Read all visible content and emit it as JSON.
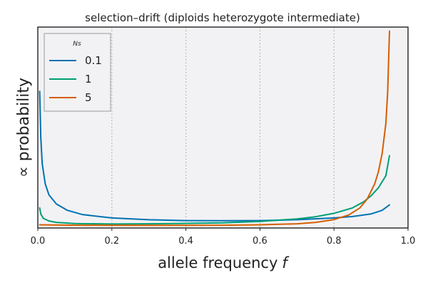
{
  "chart_data": {
    "type": "line",
    "title": "selection–drift (diploids heterozygote intermediate)",
    "xlabel": "allele frequency",
    "xlabel_symbol": "f",
    "ylabel": "∝ probability",
    "xlim": [
      0.0,
      1.0
    ],
    "ylim": [
      0.0,
      1.0
    ],
    "x_ticks": [
      "0.0",
      "0.2",
      "0.4",
      "0.6",
      "0.8",
      "1.0"
    ],
    "y_ticks": [],
    "grid": "vertical dotted lines at 0.2, 0.4, 0.6, 0.8",
    "legend_title": "Ns",
    "legend_position": "top-left",
    "series": [
      {
        "name": "0.1",
        "color": "#0072b2",
        "points": [
          [
            0.005,
            0.68
          ],
          [
            0.008,
            0.45
          ],
          [
            0.012,
            0.32
          ],
          [
            0.02,
            0.22
          ],
          [
            0.03,
            0.165
          ],
          [
            0.05,
            0.12
          ],
          [
            0.08,
            0.088
          ],
          [
            0.12,
            0.067
          ],
          [
            0.2,
            0.05
          ],
          [
            0.3,
            0.041
          ],
          [
            0.4,
            0.037
          ],
          [
            0.5,
            0.036
          ],
          [
            0.6,
            0.037
          ],
          [
            0.7,
            0.041
          ],
          [
            0.8,
            0.05
          ],
          [
            0.85,
            0.057
          ],
          [
            0.9,
            0.07
          ],
          [
            0.93,
            0.088
          ],
          [
            0.95,
            0.115
          ]
        ]
      },
      {
        "name": "1",
        "color": "#009e73",
        "points": [
          [
            0.005,
            0.1
          ],
          [
            0.008,
            0.07
          ],
          [
            0.015,
            0.048
          ],
          [
            0.03,
            0.035
          ],
          [
            0.05,
            0.028
          ],
          [
            0.1,
            0.022
          ],
          [
            0.2,
            0.02
          ],
          [
            0.3,
            0.021
          ],
          [
            0.4,
            0.023
          ],
          [
            0.5,
            0.026
          ],
          [
            0.6,
            0.033
          ],
          [
            0.7,
            0.045
          ],
          [
            0.75,
            0.056
          ],
          [
            0.8,
            0.073
          ],
          [
            0.85,
            0.1
          ],
          [
            0.88,
            0.13
          ],
          [
            0.9,
            0.16
          ],
          [
            0.92,
            0.2
          ],
          [
            0.94,
            0.26
          ],
          [
            0.95,
            0.36
          ]
        ]
      },
      {
        "name": "5",
        "color": "#d55e00",
        "points": [
          [
            0.005,
            0.016
          ],
          [
            0.1,
            0.014
          ],
          [
            0.2,
            0.013
          ],
          [
            0.3,
            0.013
          ],
          [
            0.4,
            0.013
          ],
          [
            0.5,
            0.014
          ],
          [
            0.6,
            0.016
          ],
          [
            0.7,
            0.021
          ],
          [
            0.75,
            0.028
          ],
          [
            0.8,
            0.042
          ],
          [
            0.84,
            0.065
          ],
          [
            0.87,
            0.1
          ],
          [
            0.89,
            0.145
          ],
          [
            0.91,
            0.22
          ],
          [
            0.92,
            0.28
          ],
          [
            0.93,
            0.37
          ],
          [
            0.94,
            0.52
          ],
          [
            0.945,
            0.68
          ],
          [
            0.95,
            0.98
          ]
        ]
      }
    ]
  }
}
